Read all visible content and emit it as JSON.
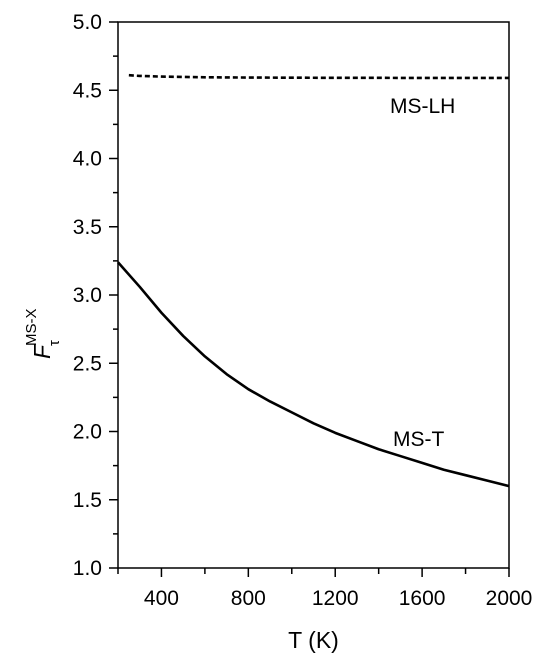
{
  "chart_data": {
    "type": "line",
    "xlabel": "T (K)",
    "ylabel": {
      "symbol": "F",
      "subscript": "τ",
      "superscript": "MS-X"
    },
    "xlim": [
      200,
      2000
    ],
    "ylim": [
      1.0,
      5.0
    ],
    "x_ticks": [
      400,
      800,
      1200,
      1600,
      2000
    ],
    "y_ticks": [
      "1.0",
      "1.5",
      "2.0",
      "2.5",
      "3.0",
      "3.5",
      "4.0",
      "4.5",
      "5.0"
    ],
    "grid": false,
    "legend": "none (series labeled inline on plot)",
    "series": [
      {
        "name": "MS-LH",
        "style": "dashed",
        "color": "#000000",
        "x": [
          250,
          300,
          400,
          600,
          800,
          1000,
          1200,
          1400,
          1600,
          1800,
          2000
        ],
        "y": [
          4.61,
          4.605,
          4.6,
          4.595,
          4.593,
          4.592,
          4.591,
          4.591,
          4.59,
          4.59,
          4.59
        ]
      },
      {
        "name": "MS-T",
        "style": "solid",
        "color": "#000000",
        "x": [
          200,
          300,
          400,
          500,
          600,
          700,
          800,
          900,
          1000,
          1100,
          1200,
          1300,
          1400,
          1500,
          1600,
          1700,
          1800,
          1900,
          2000
        ],
        "y": [
          3.24,
          3.06,
          2.87,
          2.7,
          2.55,
          2.42,
          2.31,
          2.22,
          2.14,
          2.06,
          1.99,
          1.93,
          1.87,
          1.82,
          1.77,
          1.72,
          1.68,
          1.64,
          1.6
        ]
      }
    ]
  }
}
